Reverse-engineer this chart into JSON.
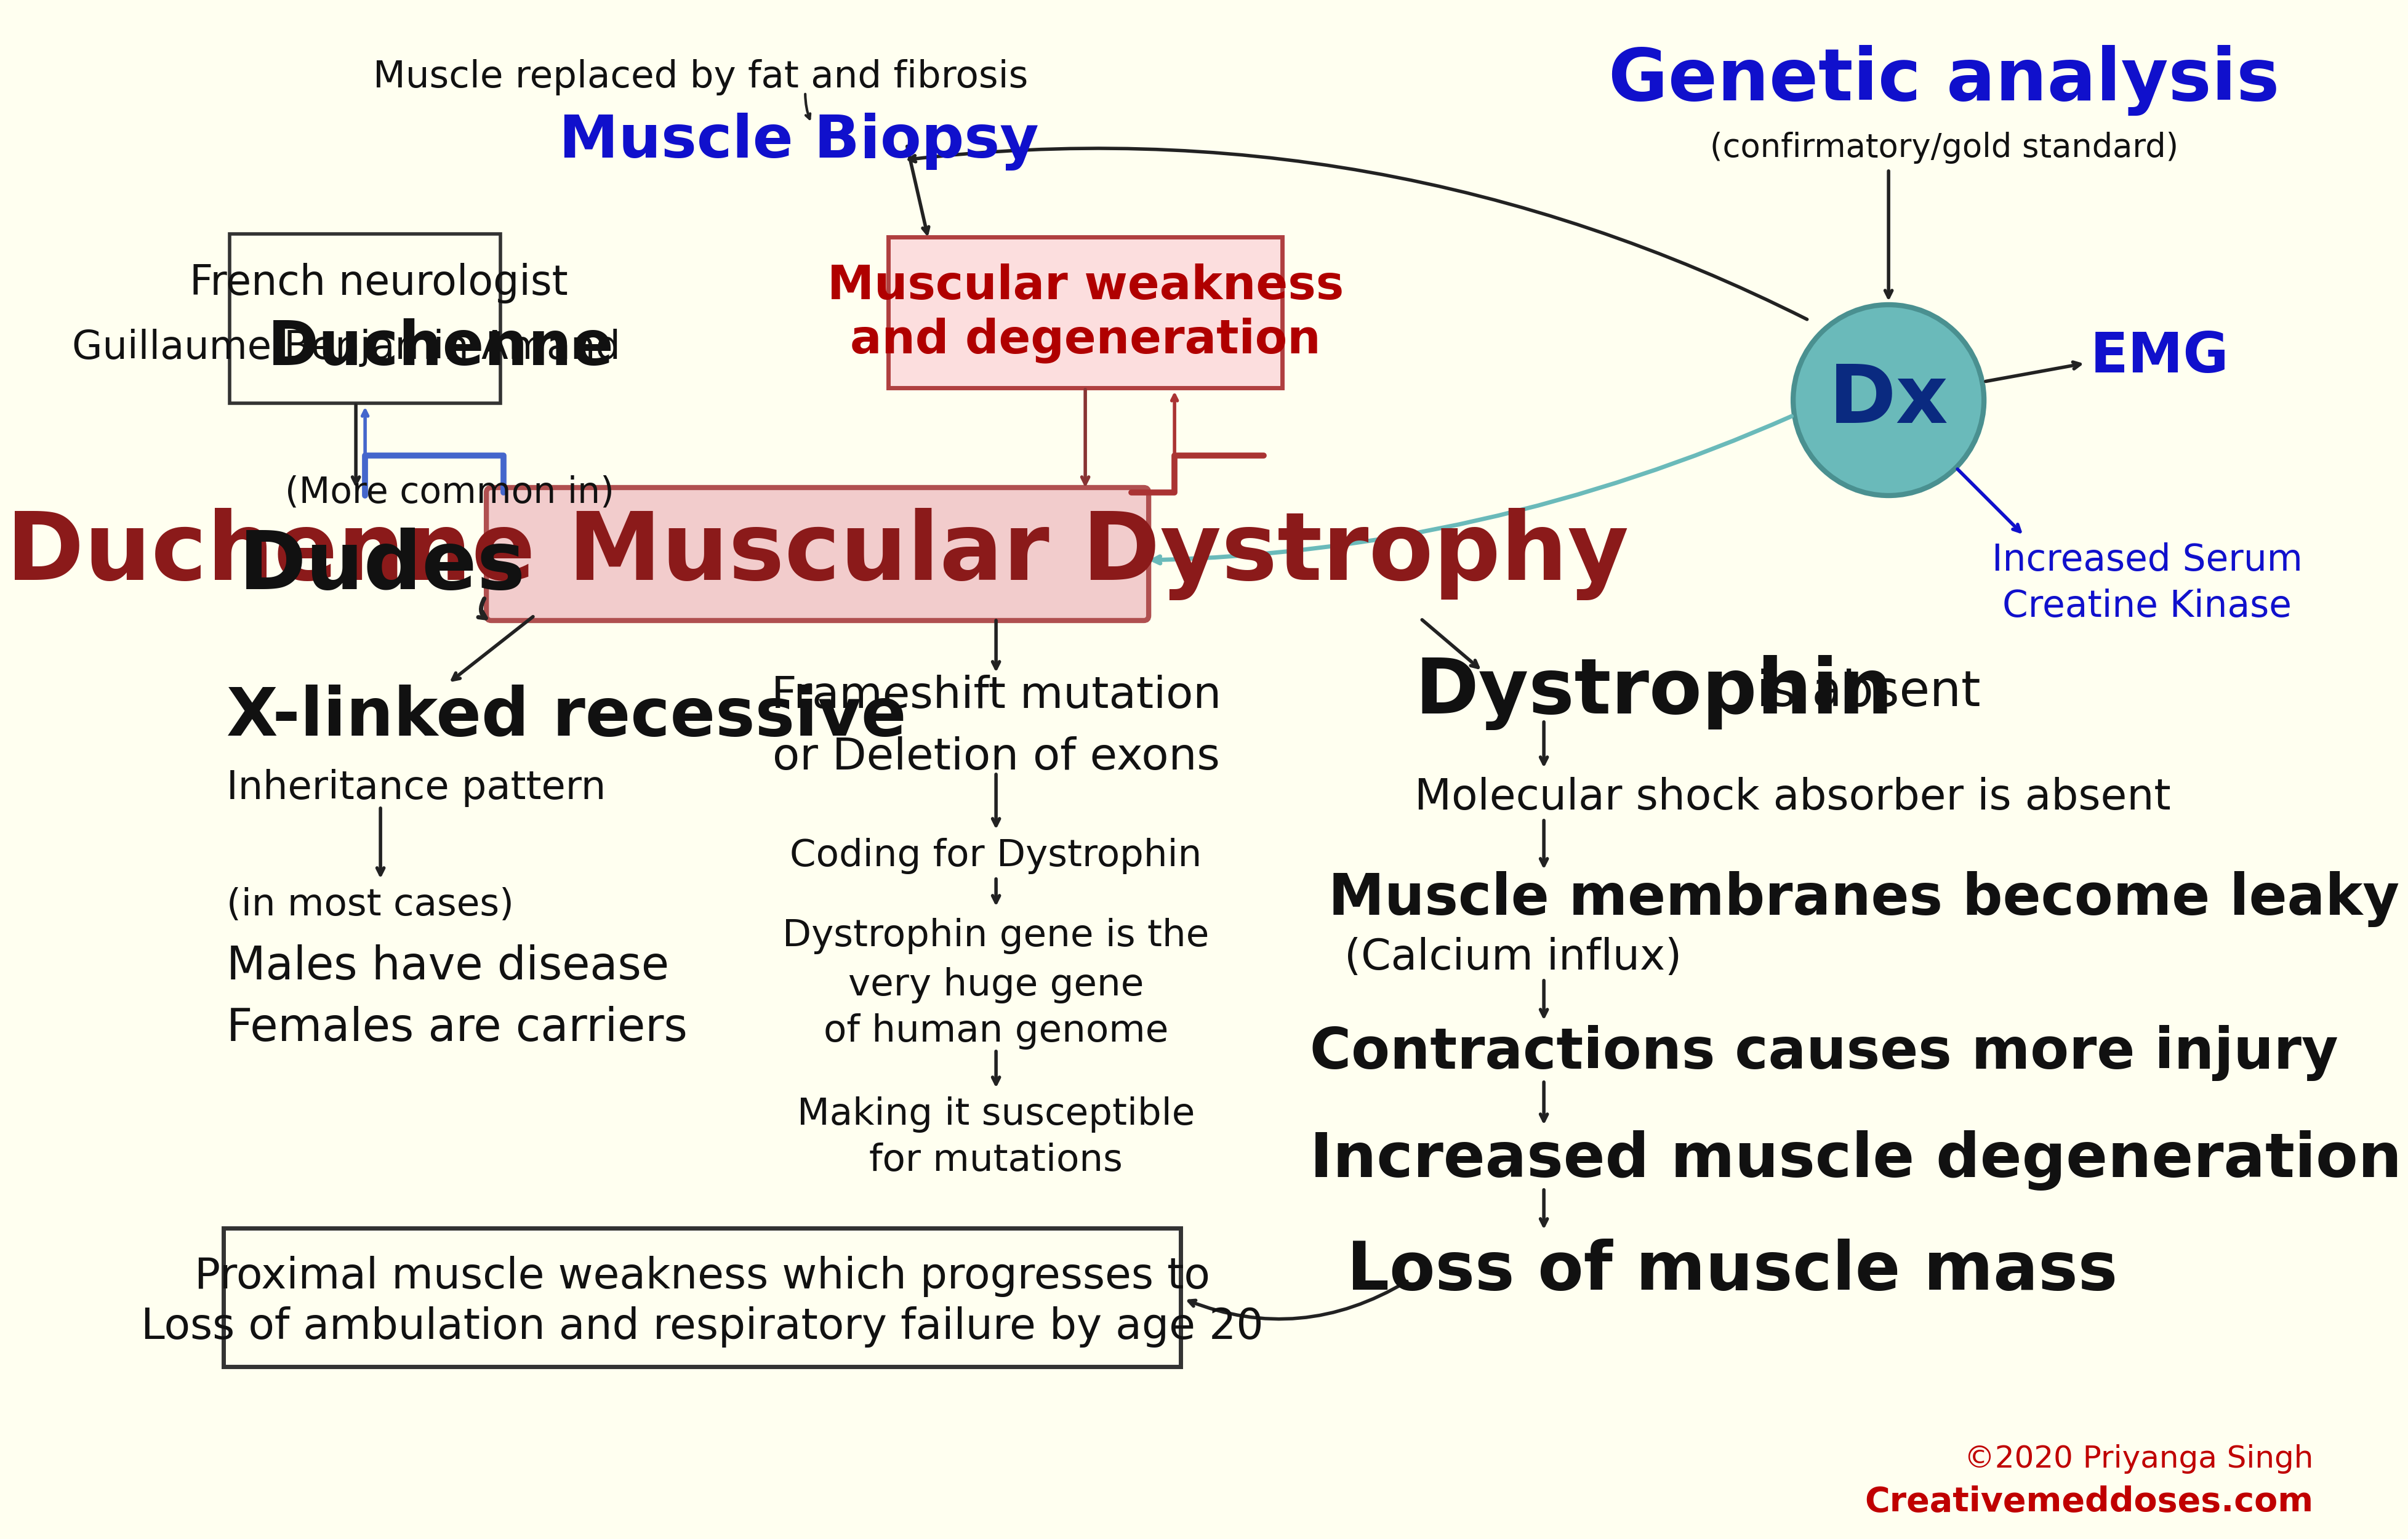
{
  "bg_color": "#FFFFF0",
  "title": "Duchenne Muscular Dystrophy",
  "title_color": "#8B1A1A",
  "title_bg": "#F2CCCC",
  "title_border": "#B05050",
  "copyright_line1": "©2020 Priyanga Singh",
  "copyright_line2": "Creativemeddoses.com",
  "copyright_color": "#C00000",
  "history_box": {
    "line1": "French neurologist",
    "line2": "Guillaume Benjamin Amand",
    "line3": "Duchenne",
    "border": "#333333",
    "text_color": "#111111"
  },
  "dudes_prefix": "(More common in)",
  "dudes": "Dudes",
  "xlinked": "X-linked recessive",
  "inheritance": "Inheritance pattern",
  "males1": "(in most cases)",
  "males2": "Males have disease",
  "females": "Females are carriers",
  "frameshift1": "Frameshift mutation",
  "frameshift2": "or Deletion of exons",
  "coding": "Coding for Dystrophin",
  "dyst_gene1": "Dystrophin gene is the",
  "dyst_gene2": "very huge gene",
  "dyst_gene3": "of human genome",
  "susceptible1": "Making it susceptible",
  "susceptible2": "for mutations",
  "mw_line1": "Muscular weakness",
  "mw_line2": "and degeneration",
  "mw_border": "#B04040",
  "mw_bg": "#FCDEDE",
  "mw_color": "#B00000",
  "biopsy_title": "Muscle Biopsy",
  "biopsy_sub": "Muscle replaced by fat and fibrosis",
  "biopsy_color": "#1010CC",
  "genetic_title": "Genetic analysis",
  "genetic_sub": "(confirmatory/gold standard)",
  "genetic_color": "#1010CC",
  "dx_text": "Dx",
  "dx_bg": "#6ABABA",
  "dx_border": "#4A9090",
  "dx_text_color": "#0A2A80",
  "emg": "EMG",
  "emg_color": "#1010CC",
  "ck1": "Increased Serum",
  "ck2": "Creatine Kinase",
  "ck_color": "#1010CC",
  "dystrophin": "Dystrophin",
  "is_absent": " is absent",
  "mol_shock": "Molecular shock absorber is absent",
  "mem1": "Muscle membranes become leaky",
  "mem2": "(Calcium influx)",
  "contractions": "Contractions causes more injury",
  "increased": "Increased muscle degeneration",
  "loss": "Loss of muscle mass",
  "bb1": "Proximal muscle weakness which progresses to",
  "bb2": "Loss of ambulation and respiratory failure by age 20",
  "bb_border": "#333333",
  "text_color": "#111111",
  "arrow_color": "#222222",
  "blue_bracket": "#4466CC",
  "red_bracket": "#AA3333"
}
